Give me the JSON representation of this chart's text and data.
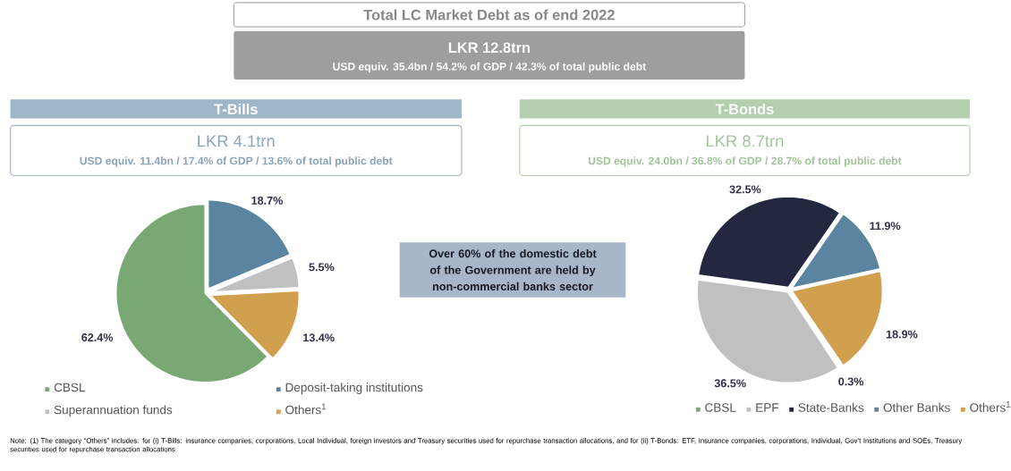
{
  "chart_data": [
    {
      "type": "other",
      "title": "Total LC Market Debt as of end 2022",
      "subtitle": "LKR 12.8trn",
      "annotations": [
        "USD equiv. 35.4bn / 54.2% of GDP / 42.3% of total public debt",
        "Over 60% of the domestic debt of the Government are held by non-commercial banks sector",
        "Note: (1) The category “Others” includes: for (i) T-Bills: insurance companies, corporations, Local Individual, foreign investors and Treasury securities used for repurchase transaction allocations, and for (ii) T-Bonds: ETF, Insurance companies, corporations, Individual, Gov’t Institutions and SOEs, Treasury securities used for repurchase transaction allocations"
      ]
    },
    {
      "type": "pie",
      "title": "T-Bills",
      "subtitle": "LKR 4.1trn",
      "annotations": [
        "USD equiv. 11.4bn / 17.4% of GDP / 13.6% of total public debt"
      ],
      "categories": [
        "CBSL",
        "Deposit-taking institutions",
        "Superannuation funds",
        "Others$^{1}$"
      ],
      "values": [
        62.4,
        18.7,
        5.5,
        13.4
      ],
      "colors": [
        "#7aa874",
        "#5b84a1",
        "#c0c0c0",
        "#d0a04e"
      ],
      "value_labels": [
        "62.4%",
        "18.7%",
        "5.5%",
        "13.4%"
      ],
      "legend": "bottom"
    },
    {
      "type": "pie",
      "title": "T-Bonds",
      "subtitle": "LKR 8.7trn",
      "annotations": [
        "USD equiv. 24.0bn / 36.8% of GDP / 28.7% of total public debt"
      ],
      "categories": [
        "CBSL",
        "EPF",
        "State-Banks",
        "Other Banks",
        "Others$^{1}$"
      ],
      "values": [
        0.3,
        36.5,
        32.5,
        11.9,
        18.9
      ],
      "colors": [
        "#7aa874",
        "#c0c0c0",
        "#232840",
        "#5b84a1",
        "#d0a04e"
      ],
      "value_labels": [
        "0.3%",
        "36.5%",
        "32.5%",
        "11.9%",
        "18.9%"
      ],
      "legend": "bottom"
    }
  ]
}
